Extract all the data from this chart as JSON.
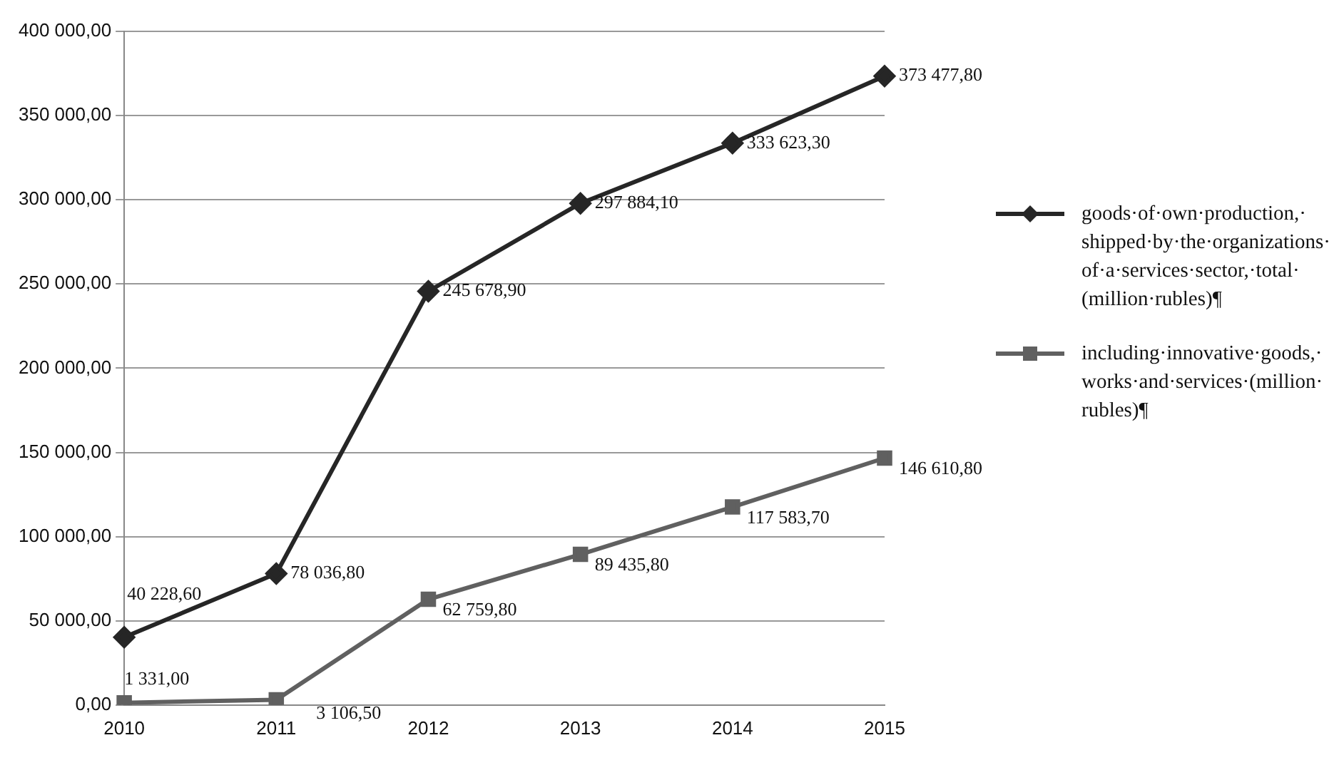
{
  "chart_data": {
    "type": "line",
    "categories": [
      "2010",
      "2011",
      "2012",
      "2013",
      "2014",
      "2015"
    ],
    "ylim": [
      0,
      400000
    ],
    "yticks": [
      {
        "value": 0,
        "label": "0,00"
      },
      {
        "value": 50000,
        "label": "50 000,00"
      },
      {
        "value": 100000,
        "label": "100 000,00"
      },
      {
        "value": 150000,
        "label": "150 000,00"
      },
      {
        "value": 200000,
        "label": "200 000,00"
      },
      {
        "value": 250000,
        "label": "250 000,00"
      },
      {
        "value": 300000,
        "label": "300 000,00"
      },
      {
        "value": 350000,
        "label": "350 000,00"
      },
      {
        "value": 400000,
        "label": "400 000,00"
      }
    ],
    "grid": "y",
    "legend": "right",
    "line_style": "solid",
    "series": [
      {
        "name": "goods·of·own·production,·shipped·by·the·organizations·of·a·services·sector,·total·(million·rubles)¶",
        "color": "#262626",
        "marker": "diamond",
        "values": [
          40228.6,
          78036.8,
          245678.9,
          297884.1,
          333623.3,
          373477.8
        ],
        "value_labels": [
          "40 228,60",
          "78 036,80",
          "245 678,90",
          "297 884,10",
          "333 623,30",
          "373 477,80"
        ]
      },
      {
        "name": "including·innovative·goods,·works·and·services·(million·rubles)¶",
        "color": "#606060",
        "marker": "square",
        "values": [
          1331,
          3106.5,
          62759.8,
          89435.8,
          117583.7,
          146610.8
        ],
        "value_labels": [
          "1 331,00",
          "3 106,50",
          "62 759,80",
          "89 435,80",
          "117 583,70",
          "146 610,80"
        ]
      }
    ]
  }
}
